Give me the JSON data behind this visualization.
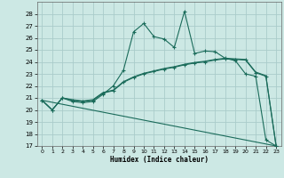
{
  "xlabel": "Humidex (Indice chaleur)",
  "bg_color": "#cce8e4",
  "grid_color": "#aaccca",
  "line_color": "#1a6b5a",
  "xlim": [
    -0.5,
    23.5
  ],
  "ylim": [
    17,
    29
  ],
  "xticks": [
    0,
    1,
    2,
    3,
    4,
    5,
    6,
    7,
    8,
    9,
    10,
    11,
    12,
    13,
    14,
    15,
    16,
    17,
    18,
    19,
    20,
    21,
    22,
    23
  ],
  "yticks": [
    17,
    18,
    19,
    20,
    21,
    22,
    23,
    24,
    25,
    26,
    27,
    28
  ],
  "line1_x": [
    0,
    1,
    2,
    3,
    4,
    5,
    6,
    7,
    8,
    9,
    10,
    11,
    12,
    13,
    14,
    15,
    16,
    17,
    18,
    19,
    20,
    21,
    22,
    23
  ],
  "line1_y": [
    20.8,
    20.0,
    21.0,
    20.7,
    20.6,
    20.7,
    21.3,
    22.0,
    23.3,
    26.5,
    27.2,
    26.1,
    25.9,
    25.2,
    28.2,
    24.7,
    24.9,
    24.85,
    24.3,
    24.1,
    23.0,
    22.8,
    17.5,
    17.0
  ],
  "line2_x": [
    0,
    1,
    2,
    3,
    4,
    5,
    6,
    7,
    8,
    9,
    10,
    11,
    12,
    13,
    14,
    15,
    16,
    17,
    18,
    19,
    20,
    21,
    22,
    23
  ],
  "line2_y": [
    20.8,
    20.0,
    21.0,
    20.8,
    20.7,
    20.8,
    21.4,
    21.6,
    22.3,
    22.7,
    23.0,
    23.2,
    23.4,
    23.55,
    23.75,
    23.9,
    24.0,
    24.15,
    24.25,
    24.2,
    24.15,
    23.1,
    22.8,
    17.0
  ],
  "line3_x": [
    0,
    1,
    2,
    3,
    4,
    5,
    6,
    7,
    8,
    9,
    10,
    11,
    12,
    13,
    14,
    15,
    16,
    17,
    18,
    19,
    20,
    21,
    22,
    23
  ],
  "line3_y": [
    20.8,
    20.0,
    21.0,
    20.85,
    20.75,
    20.85,
    21.45,
    21.65,
    22.35,
    22.75,
    23.05,
    23.25,
    23.45,
    23.6,
    23.8,
    23.95,
    24.05,
    24.2,
    24.3,
    24.25,
    24.2,
    23.15,
    22.85,
    17.05
  ],
  "line4_x": [
    0,
    23
  ],
  "line4_y": [
    20.8,
    17.0
  ]
}
